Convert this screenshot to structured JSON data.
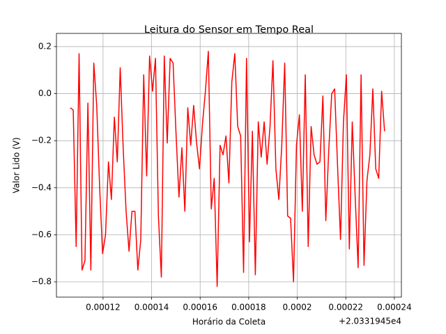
{
  "chart_data": {
    "type": "line",
    "title": "Leitura do Sensor em Tempo Real",
    "x_label": "Horário da Coleta",
    "y_label": "Valor Lido (V)",
    "x_offset_text": "+2.0331945e4",
    "grid": true,
    "xlim": [
      0.0001008,
      0.0002429
    ],
    "ylim": [
      -0.865,
      0.256
    ],
    "xticks": [
      0.00012,
      0.00014,
      0.00016,
      0.00018,
      0.0002,
      0.00022,
      0.00024
    ],
    "yticks": [
      0.2,
      {
        "value": 0,
        "label": "0.0"
      },
      {
        "value": -0.2,
        "label": "−0.2"
      },
      {
        "value": -0.4,
        "label": "−0.4"
      },
      {
        "value": -0.6,
        "label": "−0.6"
      },
      {
        "value": -0.8,
        "label": "−0.8"
      }
    ],
    "x": [
      0.0001065,
      0.00010771,
      0.00010892,
      0.00011013,
      0.00011134,
      0.00011255,
      0.00011376,
      0.00011497,
      0.00011618,
      0.00011739,
      0.0001186,
      0.00011981,
      0.00012102,
      0.00012223,
      0.00012344,
      0.00012465,
      0.00012586,
      0.00012707,
      0.00012828,
      0.00012949,
      0.0001307,
      0.00013191,
      0.00013312,
      0.00013433,
      0.00013554,
      0.00013675,
      0.00013796,
      0.00013917,
      0.00014038,
      0.00014159,
      0.0001428,
      0.00014401,
      0.00014522,
      0.00014643,
      0.00014764,
      0.00014885,
      0.00015006,
      0.00015127,
      0.00015248,
      0.00015369,
      0.0001549,
      0.00015611,
      0.00015732,
      0.00015853,
      0.00015974,
      0.00016095,
      0.00016216,
      0.00016337,
      0.00016458,
      0.00016579,
      0.000167,
      0.00016821,
      0.00016942,
      0.00017063,
      0.00017184,
      0.00017305,
      0.00017426,
      0.00017547,
      0.00017668,
      0.00017789,
      0.0001791,
      0.00018031,
      0.00018152,
      0.00018273,
      0.00018394,
      0.00018515,
      0.00018636,
      0.00018757,
      0.00018878,
      0.00018999,
      0.0001912,
      0.00019241,
      0.00019362,
      0.00019483,
      0.00019604,
      0.00019725,
      0.00019846,
      0.00019967,
      0.00020088,
      0.00020209,
      0.0002033,
      0.00020451,
      0.00020572,
      0.00020693,
      0.00020814,
      0.00020935,
      0.00021056,
      0.00021177,
      0.00021298,
      0.00021419,
      0.0002154,
      0.00021661,
      0.00021782,
      0.00021903,
      0.00022024,
      0.00022145,
      0.00022266,
      0.00022387,
      0.00022508,
      0.00022629,
      0.0002275,
      0.00022871,
      0.00022992,
      0.00023113,
      0.00023234,
      0.00023355,
      0.00023476,
      0.00023597
    ],
    "series": [
      {
        "color": "#ff0000",
        "values": [
          -0.06,
          -0.07,
          -0.65,
          0.17,
          -0.75,
          -0.71,
          -0.04,
          -0.75,
          0.13,
          -0.05,
          -0.4,
          -0.68,
          -0.6,
          -0.29,
          -0.45,
          -0.1,
          -0.29,
          0.11,
          -0.23,
          -0.5,
          -0.67,
          -0.5,
          -0.5,
          -0.75,
          -0.62,
          0.08,
          -0.35,
          0.16,
          0.01,
          0.15,
          -0.52,
          -0.78,
          0.16,
          -0.21,
          0.15,
          0.13,
          -0.17,
          -0.44,
          -0.23,
          -0.5,
          -0.06,
          -0.22,
          -0.05,
          -0.21,
          -0.32,
          -0.13,
          0.01,
          0.18,
          -0.49,
          -0.36,
          -0.82,
          -0.22,
          -0.26,
          -0.18,
          -0.38,
          0.05,
          0.17,
          -0.14,
          -0.18,
          -0.76,
          0.15,
          -0.63,
          -0.16,
          -0.77,
          -0.12,
          -0.27,
          -0.12,
          -0.3,
          -0.14,
          0.14,
          -0.32,
          -0.45,
          -0.22,
          0.13,
          -0.52,
          -0.53,
          -0.8,
          -0.22,
          -0.09,
          -0.5,
          0.08,
          -0.65,
          -0.14,
          -0.26,
          -0.3,
          -0.29,
          -0.01,
          -0.54,
          -0.24,
          0.0,
          0.02,
          -0.31,
          -0.62,
          -0.12,
          0.08,
          -0.66,
          -0.12,
          -0.44,
          -0.74,
          0.08,
          -0.73,
          -0.37,
          -0.26,
          0.02,
          -0.32,
          -0.36,
          0.01,
          -0.16
        ]
      }
    ]
  }
}
